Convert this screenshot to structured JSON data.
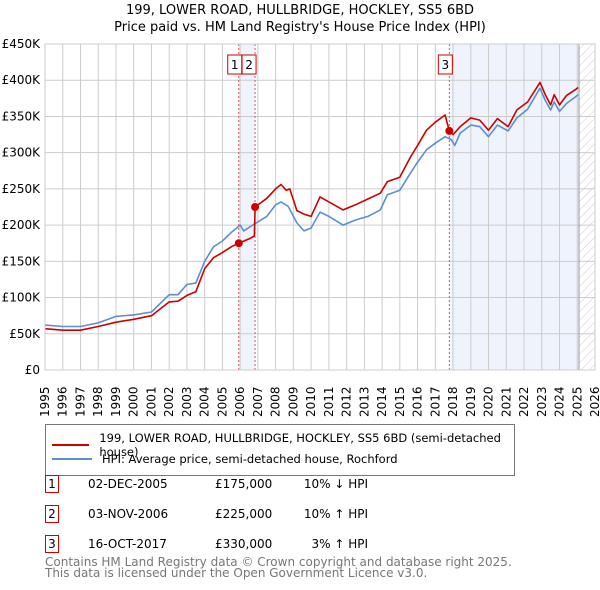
{
  "title": {
    "line1": "199, LOWER ROAD, HULLBRIDGE, HOCKLEY, SS5 6BD",
    "line2": "Price paid vs. HM Land Registry's House Price Index (HPI)"
  },
  "chart_data": {
    "type": "line",
    "title": "199, LOWER ROAD, HULLBRIDGE, HOCKLEY, SS5 6BD - Price paid vs. HM Land Registry's House Price Index (HPI)",
    "xlim": [
      1995,
      2026
    ],
    "ylim": [
      0,
      450000
    ],
    "x_ticks": [
      "1995",
      "1996",
      "1997",
      "1998",
      "1999",
      "2000",
      "2001",
      "2002",
      "2003",
      "2004",
      "2005",
      "2006",
      "2007",
      "2008",
      "2009",
      "2010",
      "2011",
      "2012",
      "2013",
      "2014",
      "2015",
      "2016",
      "2017",
      "2018",
      "2019",
      "2020",
      "2021",
      "2022",
      "2023",
      "2024",
      "2025",
      "2026"
    ],
    "y_ticks": [
      {
        "v": 0,
        "label": "£0"
      },
      {
        "v": 50000,
        "label": "£50K"
      },
      {
        "v": 100000,
        "label": "£100K"
      },
      {
        "v": 150000,
        "label": "£150K"
      },
      {
        "v": 200000,
        "label": "£200K"
      },
      {
        "v": 250000,
        "label": "£250K"
      },
      {
        "v": 300000,
        "label": "£300K"
      },
      {
        "v": 350000,
        "label": "£350K"
      },
      {
        "v": 400000,
        "label": "£400K"
      },
      {
        "v": 450000,
        "label": "£450K"
      }
    ],
    "grid": true,
    "series": [
      {
        "name": "199, LOWER ROAD, HULLBRIDGE, HOCKLEY, SS5 6BD (semi-detached house)",
        "color": "#cc0000",
        "x": [
          1995,
          1996,
          1997,
          1998,
          1999,
          2000,
          2001,
          2002,
          2002.5,
          2003,
          2003.5,
          2004,
          2004.5,
          2005,
          2005.5,
          2005.92,
          2006.5,
          2006.8,
          2006.84,
          2007.5,
          2008,
          2008.3,
          2008.6,
          2008.8,
          2009.2,
          2009.6,
          2010,
          2010.5,
          2011,
          2011.8,
          2012.5,
          2013.2,
          2013.9,
          2014.3,
          2015,
          2015.6,
          2016,
          2016.5,
          2017,
          2017.55,
          2017.79,
          2018,
          2018.4,
          2019,
          2019.5,
          2020,
          2020.5,
          2021.1,
          2021.6,
          2022.2,
          2022.9,
          2023.2,
          2023.5,
          2023.7,
          2024,
          2024.4,
          2024.9,
          2025.05
        ],
        "values": [
          57000,
          55000,
          55000,
          60000,
          66000,
          70000,
          75000,
          94000,
          95000,
          103000,
          108000,
          140000,
          155000,
          162000,
          170000,
          175000,
          181000,
          185000,
          225000,
          237000,
          250000,
          256000,
          248000,
          250000,
          220000,
          215000,
          212000,
          239000,
          232000,
          221000,
          228000,
          236000,
          244000,
          260000,
          266000,
          294000,
          310000,
          331000,
          342000,
          352000,
          330000,
          325000,
          336000,
          348000,
          345000,
          331000,
          347000,
          336000,
          359000,
          370000,
          397000,
          380000,
          366000,
          380000,
          366000,
          379000,
          387000,
          390000
        ]
      },
      {
        "name": "HPI: Average price, semi-detached house, Rochford",
        "color": "#5b8fd0",
        "x": [
          1995,
          1996,
          1997,
          1998,
          1999,
          2000,
          2001,
          2002,
          2002.5,
          2003,
          2003.5,
          2004,
          2004.5,
          2005,
          2005.5,
          2006,
          2006.2,
          2006.9,
          2007.5,
          2008,
          2008.3,
          2008.7,
          2009.2,
          2009.6,
          2010,
          2010.5,
          2011,
          2011.8,
          2012.5,
          2013.2,
          2013.9,
          2014.3,
          2015,
          2015.6,
          2016,
          2016.5,
          2017,
          2017.55,
          2017.9,
          2018.1,
          2018.4,
          2019,
          2019.5,
          2020,
          2020.5,
          2021.1,
          2021.6,
          2022.2,
          2022.9,
          2023.2,
          2023.5,
          2023.7,
          2024,
          2024.4,
          2024.9,
          2025.05
        ],
        "values": [
          62000,
          60000,
          60000,
          65000,
          74000,
          76000,
          80000,
          104000,
          104000,
          118000,
          120000,
          150000,
          170000,
          178000,
          190000,
          200000,
          192000,
          203000,
          212000,
          228000,
          232000,
          226000,
          203000,
          192000,
          196000,
          218000,
          212000,
          200000,
          207000,
          212000,
          221000,
          242000,
          248000,
          272000,
          287000,
          304000,
          313000,
          322000,
          318000,
          310000,
          327000,
          338000,
          336000,
          322000,
          338000,
          330000,
          348000,
          360000,
          389000,
          372000,
          359000,
          370000,
          357000,
          368000,
          377000,
          380000
        ]
      }
    ],
    "sales": [
      {
        "n": "1",
        "x": 2005.92,
        "value": 175000
      },
      {
        "n": "2",
        "x": 2006.84,
        "value": 225000
      },
      {
        "n": "3",
        "x": 2017.79,
        "value": 330000
      }
    ],
    "shaded_ranges": [
      [
        2005.92,
        2006.84
      ],
      [
        2017.79,
        2025.1
      ]
    ],
    "forecast_hatch_from": 2025.1,
    "legend_placement": "below"
  },
  "legend": {
    "property": "199, LOWER ROAD, HULLBRIDGE, HOCKLEY, SS5 6BD (semi-detached house)",
    "hpi": "HPI: Average price, semi-detached house, Rochford"
  },
  "sales_table": [
    {
      "n": "1",
      "date": "02-DEC-2005",
      "price": "£175,000",
      "hpi": "10% ↓ HPI"
    },
    {
      "n": "2",
      "date": "03-NOV-2006",
      "price": "£225,000",
      "hpi": "10% ↑ HPI"
    },
    {
      "n": "3",
      "date": "16-OCT-2017",
      "price": "£330,000",
      "hpi": "3% ↑ HPI"
    }
  ],
  "footer": {
    "line1": "Contains HM Land Registry data © Crown copyright and database right 2025.",
    "line2": "This data is licensed under the Open Government Licence v3.0."
  }
}
